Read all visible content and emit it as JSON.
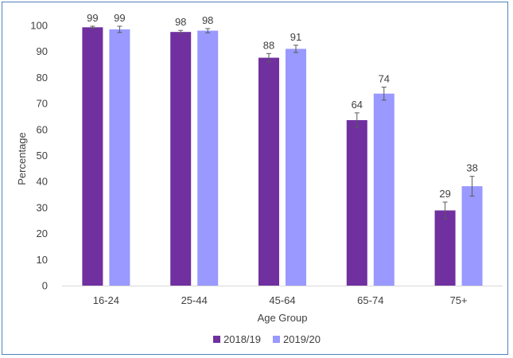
{
  "chart_data": {
    "type": "bar",
    "title": "",
    "xlabel": "Age Group",
    "ylabel": "Percentage",
    "ylim": [
      0,
      100
    ],
    "yticks": [
      0,
      10,
      20,
      30,
      40,
      50,
      60,
      70,
      80,
      90,
      100
    ],
    "grid": false,
    "legend_position": "bottom",
    "categories": [
      "16-24",
      "25-44",
      "45-64",
      "65-74",
      "75+"
    ],
    "series": [
      {
        "name": "2018/19",
        "color": "#7030a0",
        "values": [
          99.3,
          97.5,
          87.6,
          63.6,
          28.9
        ],
        "labels": [
          "99",
          "98",
          "88",
          "64",
          "29"
        ],
        "error": [
          0.4,
          0.6,
          1.6,
          2.8,
          3.2
        ]
      },
      {
        "name": "2019/20",
        "color": "#9999ff",
        "values": [
          98.5,
          98.0,
          91.0,
          73.8,
          38.2
        ],
        "labels": [
          "99",
          "98",
          "91",
          "74",
          "38"
        ],
        "error": [
          1.2,
          0.8,
          1.4,
          2.5,
          3.8
        ]
      }
    ]
  }
}
